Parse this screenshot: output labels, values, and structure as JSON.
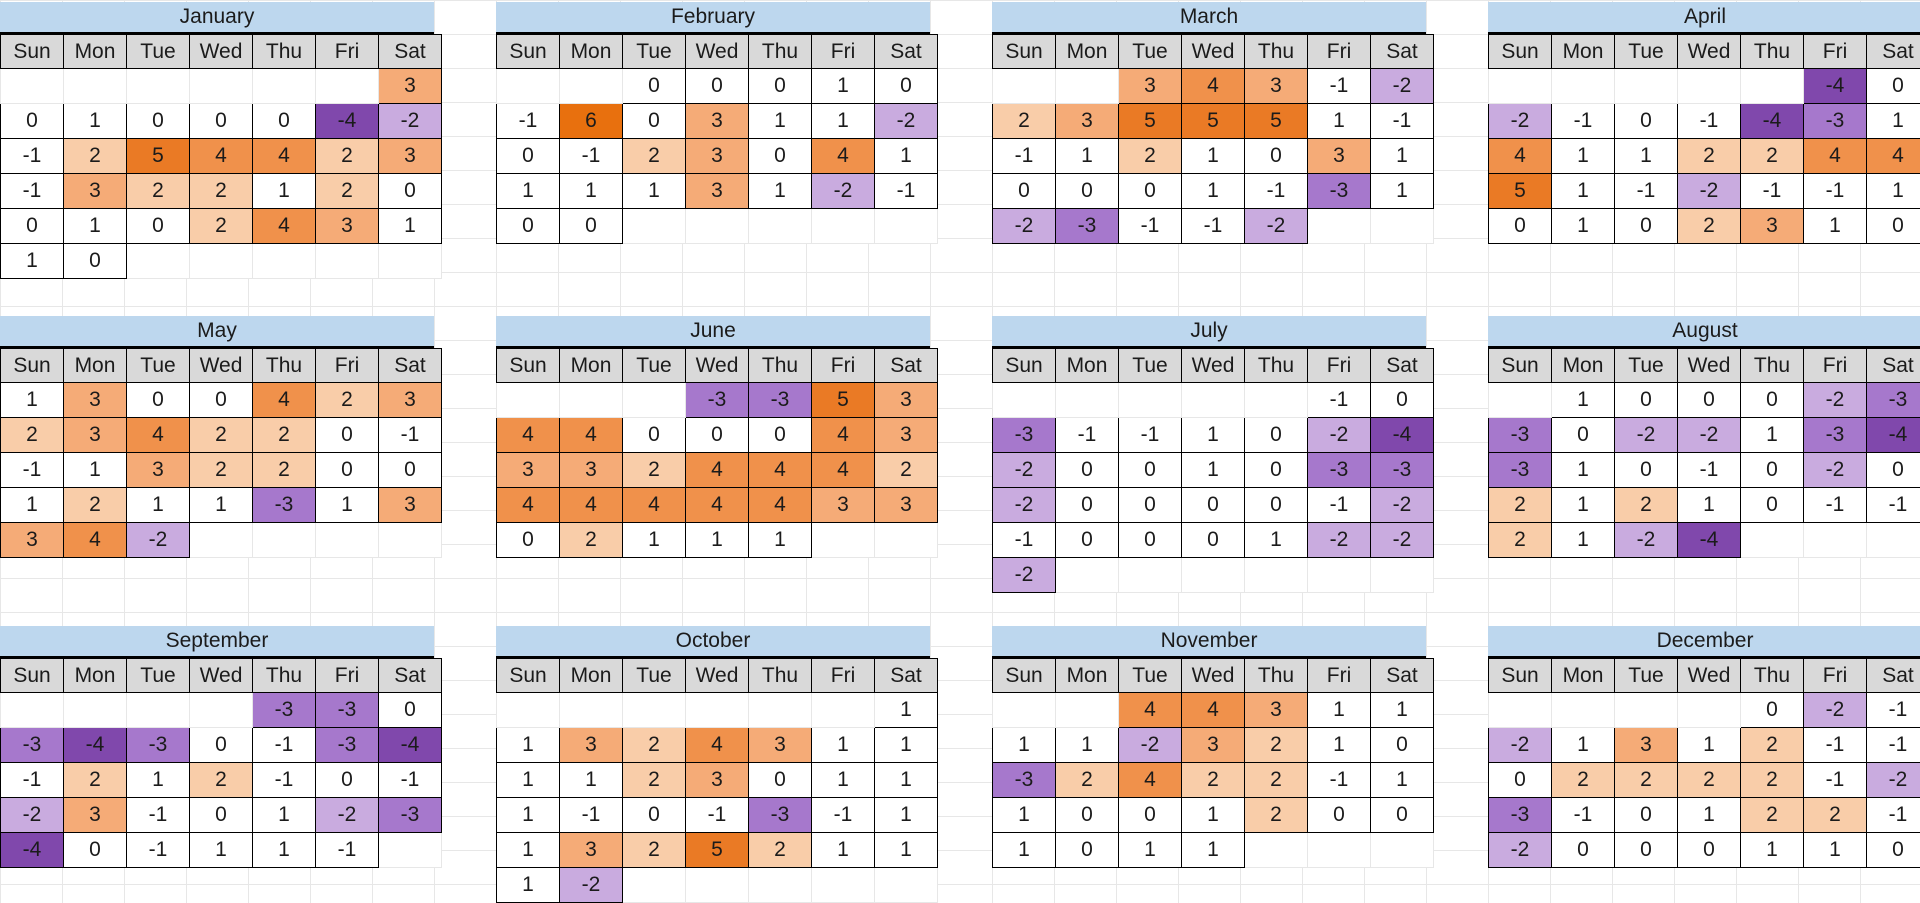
{
  "sheet": {
    "weekday_headers": [
      "Sun",
      "Mon",
      "Tue",
      "Wed",
      "Thu",
      "Fri",
      "Sat"
    ],
    "months": [
      {
        "name": "January",
        "weeks": [
          [
            null,
            null,
            null,
            null,
            null,
            null,
            3
          ],
          [
            0,
            1,
            0,
            0,
            0,
            -4,
            -2
          ],
          [
            -1,
            2,
            5,
            4,
            4,
            2,
            3
          ],
          [
            -1,
            3,
            2,
            2,
            1,
            2,
            0
          ],
          [
            0,
            1,
            0,
            2,
            4,
            3,
            1
          ],
          [
            1,
            0,
            null,
            null,
            null,
            null,
            null
          ]
        ]
      },
      {
        "name": "February",
        "weeks": [
          [
            null,
            null,
            0,
            0,
            0,
            1,
            0
          ],
          [
            -1,
            6,
            0,
            3,
            1,
            1,
            -2
          ],
          [
            0,
            -1,
            2,
            3,
            0,
            4,
            1
          ],
          [
            1,
            1,
            1,
            3,
            1,
            -2,
            -1
          ],
          [
            0,
            0,
            null,
            null,
            null,
            null,
            null
          ]
        ]
      },
      {
        "name": "March",
        "weeks": [
          [
            null,
            null,
            3,
            4,
            3,
            -1,
            -2
          ],
          [
            2,
            3,
            5,
            5,
            5,
            1,
            -1
          ],
          [
            -1,
            1,
            2,
            1,
            0,
            3,
            1
          ],
          [
            0,
            0,
            0,
            1,
            -1,
            -3,
            1
          ],
          [
            -2,
            -3,
            -1,
            -1,
            -2,
            null,
            null
          ]
        ]
      },
      {
        "name": "April",
        "weeks": [
          [
            null,
            null,
            null,
            null,
            null,
            -4,
            0
          ],
          [
            -2,
            -1,
            0,
            -1,
            -4,
            -3,
            1
          ],
          [
            4,
            1,
            1,
            2,
            2,
            4,
            4
          ],
          [
            5,
            1,
            -1,
            -2,
            -1,
            -1,
            1
          ],
          [
            0,
            1,
            0,
            2,
            3,
            1,
            0
          ]
        ]
      },
      {
        "name": "May",
        "weeks": [
          [
            1,
            3,
            0,
            0,
            4,
            2,
            3
          ],
          [
            2,
            3,
            4,
            2,
            2,
            0,
            -1
          ],
          [
            -1,
            1,
            3,
            2,
            2,
            0,
            0
          ],
          [
            1,
            2,
            1,
            1,
            -3,
            1,
            3
          ],
          [
            3,
            4,
            -2,
            null,
            null,
            null,
            null
          ]
        ]
      },
      {
        "name": "June",
        "weeks": [
          [
            null,
            null,
            null,
            -3,
            -3,
            5,
            3
          ],
          [
            4,
            4,
            0,
            0,
            0,
            4,
            3
          ],
          [
            3,
            3,
            2,
            4,
            4,
            4,
            2
          ],
          [
            4,
            4,
            4,
            4,
            4,
            3,
            3
          ],
          [
            0,
            2,
            1,
            1,
            1,
            null,
            null
          ]
        ]
      },
      {
        "name": "July",
        "weeks": [
          [
            null,
            null,
            null,
            null,
            null,
            -1,
            0
          ],
          [
            -3,
            -1,
            -1,
            1,
            0,
            -2,
            -4
          ],
          [
            -2,
            0,
            0,
            1,
            0,
            -3,
            -3
          ],
          [
            -2,
            0,
            0,
            0,
            0,
            -1,
            -2
          ],
          [
            -1,
            0,
            0,
            0,
            1,
            -2,
            -2
          ],
          [
            -2,
            null,
            null,
            null,
            null,
            null,
            null
          ]
        ]
      },
      {
        "name": "August",
        "weeks": [
          [
            null,
            1,
            0,
            0,
            0,
            -2,
            -3
          ],
          [
            -3,
            0,
            -2,
            -2,
            1,
            -3,
            -4
          ],
          [
            -3,
            1,
            0,
            -1,
            0,
            -2,
            0
          ],
          [
            2,
            1,
            2,
            1,
            0,
            -1,
            -1
          ],
          [
            2,
            1,
            -2,
            -4,
            null,
            null,
            null
          ]
        ]
      },
      {
        "name": "September",
        "weeks": [
          [
            null,
            null,
            null,
            null,
            -3,
            -3,
            0
          ],
          [
            -3,
            -4,
            -3,
            0,
            -1,
            -3,
            -4
          ],
          [
            -1,
            2,
            1,
            2,
            -1,
            0,
            -1
          ],
          [
            -2,
            3,
            -1,
            0,
            1,
            -2,
            -3
          ],
          [
            -4,
            0,
            -1,
            1,
            1,
            -1,
            null
          ]
        ]
      },
      {
        "name": "October",
        "weeks": [
          [
            null,
            null,
            null,
            null,
            null,
            null,
            1
          ],
          [
            1,
            3,
            2,
            4,
            3,
            1,
            1
          ],
          [
            1,
            1,
            2,
            3,
            0,
            1,
            1
          ],
          [
            1,
            -1,
            0,
            -1,
            -3,
            -1,
            1
          ],
          [
            1,
            3,
            2,
            5,
            2,
            1,
            1
          ],
          [
            1,
            -2,
            null,
            null,
            null,
            null,
            null
          ]
        ]
      },
      {
        "name": "November",
        "weeks": [
          [
            null,
            null,
            4,
            4,
            3,
            1,
            1
          ],
          [
            1,
            1,
            -2,
            3,
            2,
            1,
            0
          ],
          [
            -3,
            2,
            4,
            2,
            2,
            -1,
            1
          ],
          [
            1,
            0,
            0,
            1,
            2,
            0,
            0
          ],
          [
            1,
            0,
            1,
            1,
            null,
            null,
            null
          ]
        ]
      },
      {
        "name": "December",
        "weeks": [
          [
            null,
            null,
            null,
            null,
            0,
            -2,
            -1
          ],
          [
            -2,
            1,
            3,
            1,
            2,
            -1,
            -1
          ],
          [
            0,
            2,
            2,
            2,
            2,
            -1,
            -2
          ],
          [
            -3,
            -1,
            0,
            1,
            2,
            2,
            -1
          ],
          [
            -2,
            0,
            0,
            0,
            1,
            1,
            0
          ]
        ]
      }
    ]
  },
  "colors": {
    "title_bg": "#BDD7EE",
    "header_bg": "#D9D9D9",
    "value_scale": {
      "6": "#E8700E",
      "5": "#EA7A25",
      "4": "#F0914B",
      "3": "#F5AB77",
      "2": "#F9CDA9",
      "1": "#FFFFFF",
      "0": "#FFFFFF",
      "-1": "#FFFFFF",
      "-2": "#C9ABDF",
      "-3": "#A678CC",
      "-4": "#8048AC"
    }
  }
}
